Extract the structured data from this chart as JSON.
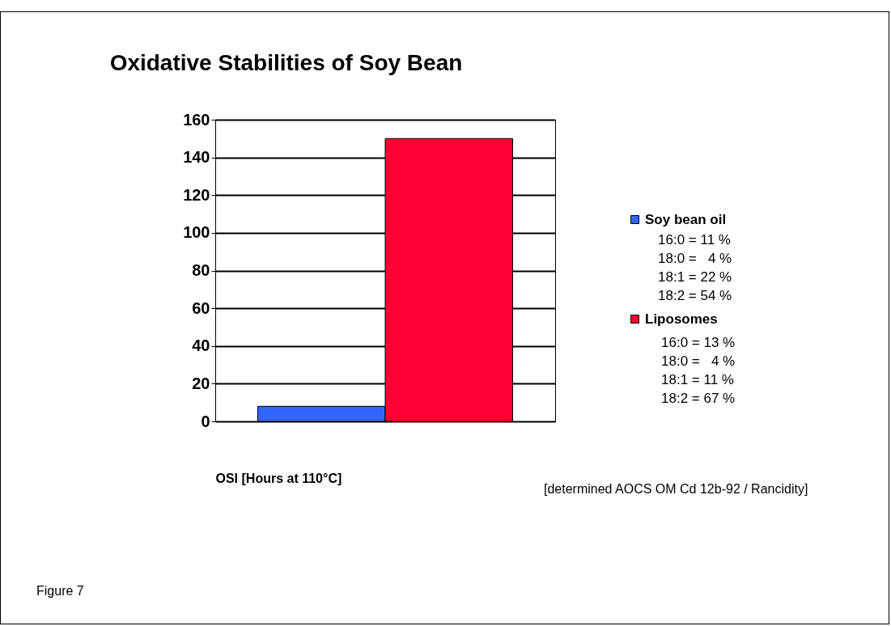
{
  "chart_data": {
    "type": "bar",
    "title": "Oxidative Stabilities of Soy Bean",
    "xlabel": "OSI [Hours at 110°C]",
    "categories": [
      null
    ],
    "series": [
      {
        "name": "Soy bean oil",
        "color": "#3366ff",
        "values": [
          8
        ]
      },
      {
        "name": "Liposomes",
        "color": "#ff0033",
        "values": [
          150
        ]
      }
    ],
    "ylim": [
      0,
      160
    ],
    "yticks": [
      0,
      20,
      40,
      60,
      80,
      100,
      120,
      140,
      160
    ],
    "grid": "y",
    "legend": "right",
    "annotations": [
      "16:0 = 11 %",
      "18:0 =   4 %",
      "18:1 = 22 %",
      "18:2 = 54 %",
      "16:0 = 13 %",
      "18:0 =   4 %",
      "18:1 = 11 %",
      "18:2 = 67 %",
      "[determined AOCS OM Cd 12b-92 / Rancidity]",
      "Figure 7"
    ]
  }
}
